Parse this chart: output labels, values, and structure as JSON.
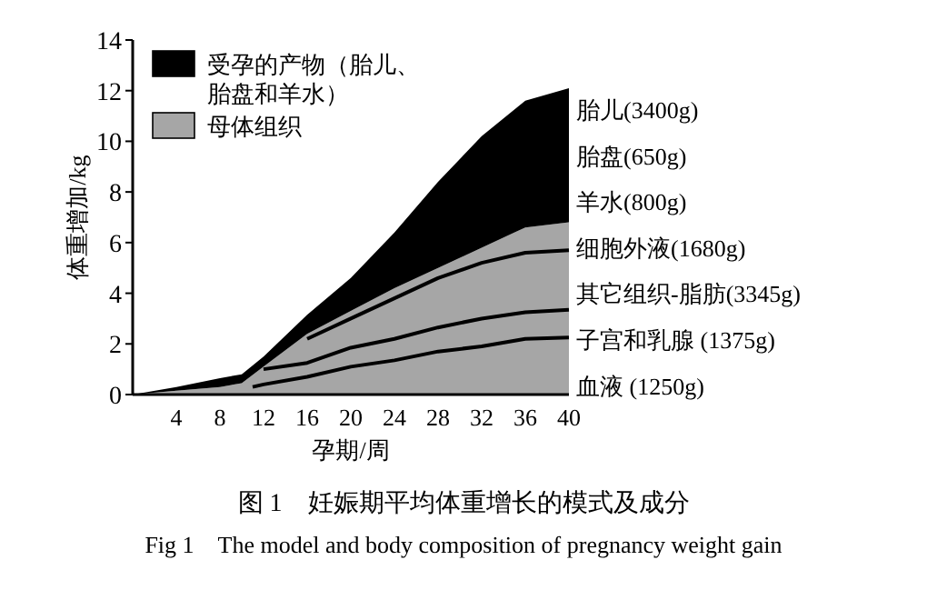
{
  "chart_data": {
    "type": "area",
    "stacked": true,
    "title": "图 1　妊娠期平均体重增长的模式及成分",
    "subtitle": "Fig 1　The model and body composition of pregnancy weight gain",
    "xlabel": "孕期/周",
    "ylabel": "体重增加/kg",
    "x": [
      0,
      4,
      8,
      10,
      12,
      16,
      20,
      24,
      28,
      32,
      36,
      40
    ],
    "series": [
      {
        "name": "母体组织",
        "color": "#a6a6a6",
        "values": [
          0,
          0.15,
          0.3,
          0.45,
          1.1,
          2.4,
          3.3,
          4.2,
          5.0,
          5.8,
          6.6,
          6.8
        ]
      },
      {
        "name": "受孕的产物（胎儿、胎盘和羊水）",
        "color": "#000000",
        "values": [
          0,
          0.15,
          0.35,
          0.35,
          0.4,
          0.75,
          1.3,
          2.2,
          3.4,
          4.4,
          5.0,
          5.3
        ]
      },
      {
        "type": "line",
        "color": "#000000",
        "x": [
          11,
          12,
          16,
          20,
          24,
          28,
          32,
          36,
          40
        ],
        "values": [
          0.3,
          0.4,
          0.7,
          1.1,
          1.35,
          1.7,
          1.9,
          2.2,
          2.25
        ]
      },
      {
        "type": "line",
        "color": "#000000",
        "x": [
          12,
          16,
          20,
          24,
          28,
          32,
          36,
          40
        ],
        "values": [
          1.0,
          1.25,
          1.85,
          2.2,
          2.65,
          3.0,
          3.25,
          3.35
        ]
      },
      {
        "type": "line",
        "color": "#000000",
        "x": [
          16,
          20,
          24,
          28,
          32,
          36,
          40
        ],
        "values": [
          2.2,
          3.0,
          3.8,
          4.6,
          5.2,
          5.6,
          5.7
        ]
      }
    ],
    "xlim": [
      0,
      40
    ],
    "ylim": [
      0,
      14
    ],
    "xticks": [
      4,
      8,
      12,
      16,
      20,
      24,
      28,
      32,
      36,
      40
    ],
    "yticks": [
      0,
      2,
      4,
      6,
      8,
      10,
      12,
      14
    ],
    "grid": false,
    "legend": "top left",
    "annotations": [
      "胎儿(3400g)",
      "胎盘(650g)",
      "羊水(800g)",
      "细胞外液(1680g)",
      "其它组织-脂肪(3345g)",
      "子宫和乳腺 (1375g)",
      "血液 (1250g)"
    ]
  }
}
